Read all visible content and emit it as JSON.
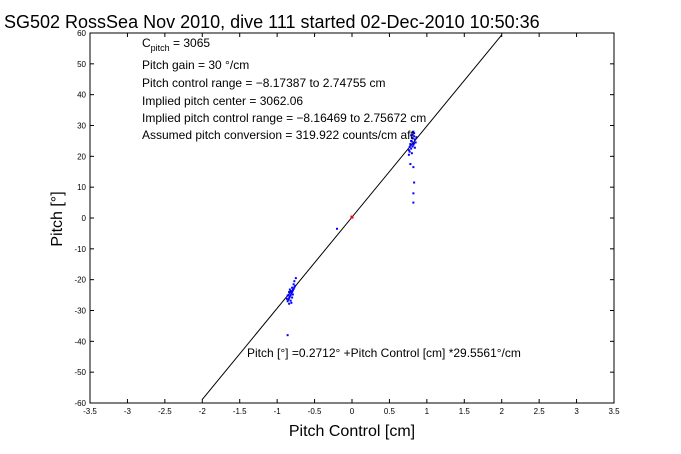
{
  "chart_data": {
    "type": "scatter",
    "title": "SG502 RossSea Nov 2010, dive 111 started 02-Dec-2010 10:50:36",
    "xlabel": "Pitch Control [cm]",
    "ylabel": "Pitch [°]",
    "xlim": [
      -3.5,
      3.5
    ],
    "ylim": [
      -60,
      60
    ],
    "x_ticks": [
      -3.5,
      -3,
      -2.5,
      -2,
      -1.5,
      -1,
      -0.5,
      0,
      0.5,
      1,
      1.5,
      2,
      2.5,
      3,
      3.5
    ],
    "y_ticks": [
      -60,
      -50,
      -40,
      -30,
      -20,
      -10,
      0,
      10,
      20,
      30,
      40,
      50,
      60
    ],
    "x_tick_labels": [
      "-3.5",
      "-3",
      "-2.5",
      "-2",
      "-1.5",
      "-1",
      "-0.5",
      "0",
      "0.5",
      "1",
      "1.5",
      "2",
      "2.5",
      "3",
      "3.5"
    ],
    "y_tick_labels": [
      "-60",
      "-50",
      "-40",
      "-30",
      "-20",
      "-10",
      "0",
      "10",
      "20",
      "30",
      "40",
      "50",
      "60"
    ],
    "grid": false,
    "colors": {
      "points": "#0000ff",
      "center": "#ff0000",
      "fit": "#000000"
    },
    "fit_line": {
      "intercept": 0.2712,
      "slope": 29.5561,
      "x_range": [
        -2.0,
        2.0
      ]
    },
    "center_point": {
      "x": 0.0,
      "y": 0.3
    },
    "series": [
      {
        "values": [
          {
            "x": -0.86,
            "y": -27.0
          },
          {
            "x": -0.85,
            "y": -26.5
          },
          {
            "x": -0.84,
            "y": -26.0
          },
          {
            "x": -0.83,
            "y": -25.5
          },
          {
            "x": -0.82,
            "y": -25.0
          },
          {
            "x": -0.81,
            "y": -24.5
          },
          {
            "x": -0.8,
            "y": -24.0
          },
          {
            "x": -0.79,
            "y": -23.5
          },
          {
            "x": -0.78,
            "y": -23.0
          },
          {
            "x": -0.77,
            "y": -22.5
          },
          {
            "x": -0.76,
            "y": -22.0
          },
          {
            "x": -0.85,
            "y": -25.0
          },
          {
            "x": -0.84,
            "y": -24.0
          },
          {
            "x": -0.83,
            "y": -23.2
          },
          {
            "x": -0.82,
            "y": -26.8
          },
          {
            "x": -0.81,
            "y": -27.5
          },
          {
            "x": -0.8,
            "y": -25.8
          },
          {
            "x": -0.79,
            "y": -24.8
          },
          {
            "x": -0.78,
            "y": -21.5
          },
          {
            "x": -0.77,
            "y": -20.5
          },
          {
            "x": -0.75,
            "y": -19.5
          },
          {
            "x": -0.87,
            "y": -26.2
          },
          {
            "x": -0.86,
            "y": -25.2
          },
          {
            "x": -0.84,
            "y": -27.8
          },
          {
            "x": -0.82,
            "y": -23.8
          },
          {
            "x": -0.8,
            "y": -22.6
          },
          {
            "x": -0.2,
            "y": -3.5
          },
          {
            "x": 0.76,
            "y": 22.0
          },
          {
            "x": 0.77,
            "y": 23.0
          },
          {
            "x": 0.78,
            "y": 24.0
          },
          {
            "x": 0.79,
            "y": 25.0
          },
          {
            "x": 0.8,
            "y": 26.0
          },
          {
            "x": 0.81,
            "y": 27.0
          },
          {
            "x": 0.82,
            "y": 28.0
          },
          {
            "x": 0.83,
            "y": 26.5
          },
          {
            "x": 0.84,
            "y": 25.5
          },
          {
            "x": 0.85,
            "y": 24.5
          },
          {
            "x": 0.78,
            "y": 23.5
          },
          {
            "x": 0.79,
            "y": 22.5
          },
          {
            "x": 0.8,
            "y": 24.8
          },
          {
            "x": 0.81,
            "y": 25.8
          },
          {
            "x": 0.82,
            "y": 23.8
          },
          {
            "x": 0.83,
            "y": 27.5
          },
          {
            "x": 0.84,
            "y": 22.8
          },
          {
            "x": 0.77,
            "y": 21.5
          },
          {
            "x": 0.76,
            "y": 20.5
          },
          {
            "x": 0.79,
            "y": 26.8
          },
          {
            "x": 0.81,
            "y": 23.2
          },
          {
            "x": 0.83,
            "y": 24.2
          },
          {
            "x": 0.86,
            "y": 26.2
          },
          {
            "x": 0.8,
            "y": 21.0
          },
          {
            "x": 0.78,
            "y": 17.5
          },
          {
            "x": 0.82,
            "y": 16.5
          },
          {
            "x": 0.83,
            "y": 11.5
          },
          {
            "x": 0.82,
            "y": 8.0
          },
          {
            "x": 0.82,
            "y": 5.0
          },
          {
            "x": -0.86,
            "y": -38.0
          }
        ]
      }
    ],
    "annotations": {
      "c_pitch_main": "C",
      "c_pitch_sub": "pitch",
      "c_pitch_value": " = 3065",
      "lines": [
        "Pitch gain = 30 °/cm",
        "Pitch control range = −8.17387 to 2.74755 cm",
        "Implied pitch center = 3062.06",
        "Implied pitch control range = −8.16469 to 2.75672 cm",
        "Assumed pitch conversion = 319.922 counts/cm aft"
      ],
      "fit_equation": "Pitch [°] =0.2712° +Pitch Control [cm] *29.5561°/cm"
    }
  }
}
